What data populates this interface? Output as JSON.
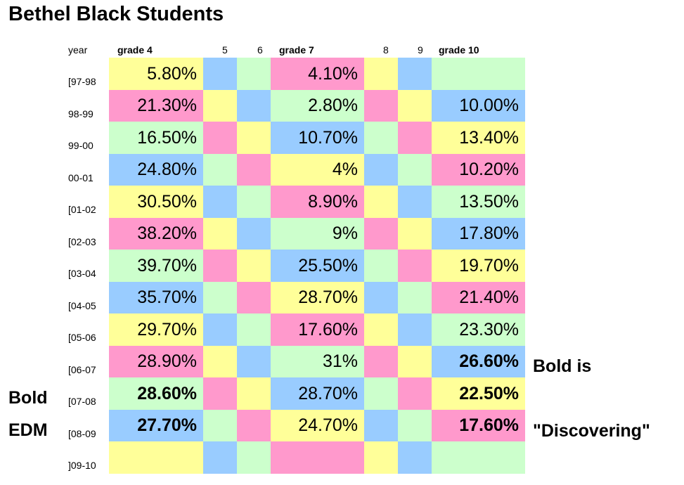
{
  "title": "Bethel Black Students",
  "headers": {
    "year": "year",
    "g4": "grade 4",
    "g5": "5",
    "g6": "6",
    "g7": "grade 7",
    "g8": "8",
    "g9": "9",
    "g10": "grade 10"
  },
  "colors": {
    "Y": "#ffff99",
    "B": "#99ccff",
    "G": "#ccffcc",
    "P": "#ff99cc"
  },
  "rows": [
    {
      "year": "[97-98",
      "g4": "5.80%",
      "g7": "4.10%",
      "g10": "",
      "bold": [
        false,
        false,
        false
      ],
      "colors": [
        "Y",
        "B",
        "G",
        "P",
        "Y",
        "B",
        "G"
      ]
    },
    {
      "year": "98-99",
      "g4": "21.30%",
      "g7": "2.80%",
      "g10": "10.00%",
      "bold": [
        false,
        false,
        false
      ],
      "colors": [
        "P",
        "Y",
        "B",
        "G",
        "P",
        "Y",
        "B"
      ]
    },
    {
      "year": "99-00",
      "g4": "16.50%",
      "g7": "10.70%",
      "g10": "13.40%",
      "bold": [
        false,
        false,
        false
      ],
      "colors": [
        "G",
        "P",
        "Y",
        "B",
        "G",
        "P",
        "Y"
      ]
    },
    {
      "year": "00-01",
      "g4": "24.80%",
      "g7": "4%",
      "g10": "10.20%",
      "bold": [
        false,
        false,
        false
      ],
      "colors": [
        "B",
        "G",
        "P",
        "Y",
        "B",
        "G",
        "P"
      ]
    },
    {
      "year": "[01-02",
      "g4": "30.50%",
      "g7": "8.90%",
      "g10": "13.50%",
      "bold": [
        false,
        false,
        false
      ],
      "colors": [
        "Y",
        "B",
        "G",
        "P",
        "Y",
        "B",
        "G"
      ]
    },
    {
      "year": "[02-03",
      "g4": "38.20%",
      "g7": "9%",
      "g10": "17.80%",
      "bold": [
        false,
        false,
        false
      ],
      "colors": [
        "P",
        "Y",
        "B",
        "G",
        "P",
        "Y",
        "B"
      ]
    },
    {
      "year": "[03-04",
      "g4": "39.70%",
      "g7": "25.50%",
      "g10": "19.70%",
      "bold": [
        false,
        false,
        false
      ],
      "colors": [
        "G",
        "P",
        "Y",
        "B",
        "G",
        "P",
        "Y"
      ]
    },
    {
      "year": "[04-05",
      "g4": "35.70%",
      "g7": "28.70%",
      "g10": "21.40%",
      "bold": [
        false,
        false,
        false
      ],
      "colors": [
        "B",
        "G",
        "P",
        "Y",
        "B",
        "G",
        "P"
      ]
    },
    {
      "year": "[05-06",
      "g4": "29.70%",
      "g7": "17.60%",
      "g10": "23.30%",
      "bold": [
        false,
        false,
        false
      ],
      "colors": [
        "Y",
        "B",
        "G",
        "P",
        "Y",
        "B",
        "G"
      ]
    },
    {
      "year": "[06-07",
      "g4": "28.90%",
      "g7": "31%",
      "g10": "26.60%",
      "bold": [
        false,
        false,
        true
      ],
      "colors": [
        "P",
        "Y",
        "B",
        "G",
        "P",
        "Y",
        "B"
      ]
    },
    {
      "year": "[07-08",
      "g4": "28.60%",
      "g7": "28.70%",
      "g10": "22.50%",
      "bold": [
        true,
        false,
        true
      ],
      "colors": [
        "G",
        "P",
        "Y",
        "B",
        "G",
        "P",
        "Y"
      ]
    },
    {
      "year": "[08-09",
      "g4": "27.70%",
      "g7": "24.70%",
      "g10": "17.60%",
      "bold": [
        true,
        false,
        true
      ],
      "colors": [
        "B",
        "G",
        "P",
        "Y",
        "B",
        "G",
        "P"
      ]
    },
    {
      "year": "]09-10",
      "g4": "",
      "g7": "",
      "g10": "",
      "bold": [
        false,
        false,
        false
      ],
      "colors": [
        "Y",
        "B",
        "G",
        "P",
        "Y",
        "B",
        "G"
      ]
    }
  ],
  "side_notes": {
    "bold": "Bold",
    "edm": "EDM",
    "bold_is": "Bold is",
    "discovering": "\"Discovering\""
  }
}
